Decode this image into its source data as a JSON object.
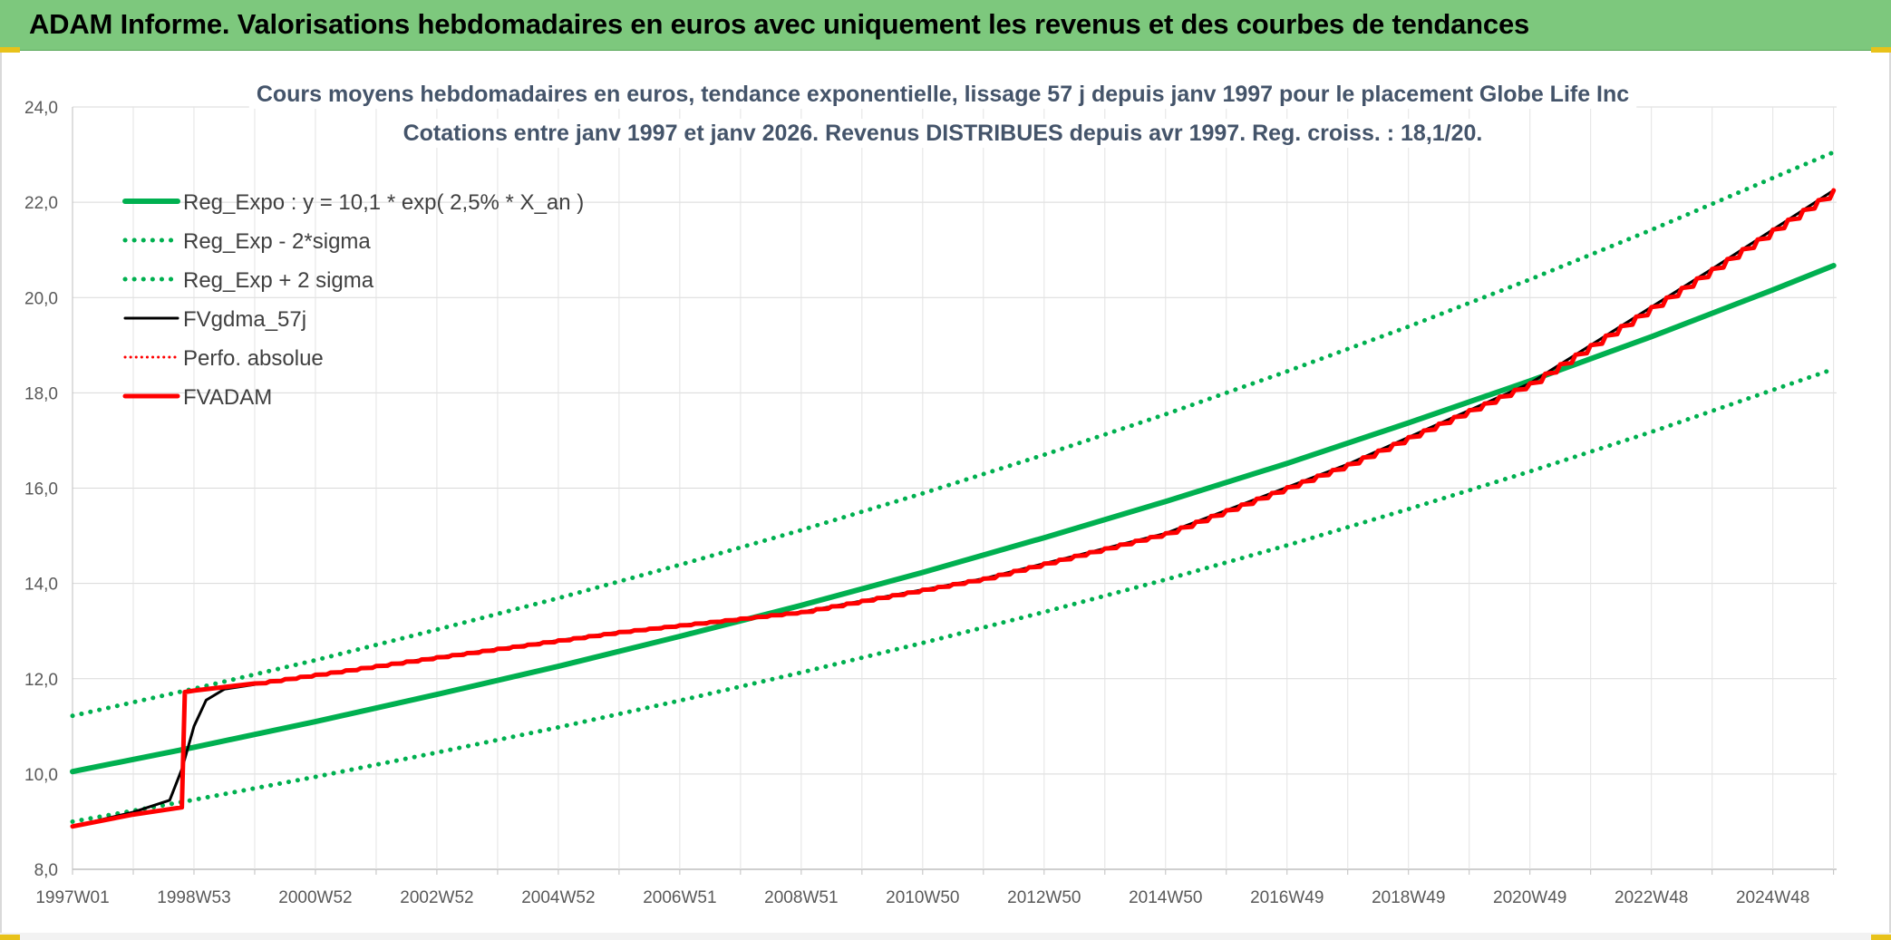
{
  "banner": {
    "title": "ADAM Informe. Valorisations hebdomadaires en euros avec uniquement les revenus et des courbes de tendances",
    "color": "#7dc87d"
  },
  "chart_data": {
    "type": "line",
    "title": "Cours moyens hebdomadaires en euros, tendance exponentielle, lissage 57 j depuis janv 1997 pour le placement Globe Life Inc",
    "subtitle": "Cotations entre janv 1997 et janv 2026. Revenus DISTRIBUES depuis avr 1997. Reg. croiss. : 18,1/20.",
    "xlabel": "",
    "ylabel": "",
    "xlim": [
      1997.0,
      2026.05
    ],
    "ylim": [
      8.0,
      24.0
    ],
    "grid": true,
    "legend_position": "top-left",
    "x_ticks": [
      {
        "label": "1997W01",
        "x": 1997.0
      },
      {
        "label": "1998W53",
        "x": 1999.0
      },
      {
        "label": "2000W52",
        "x": 2001.0
      },
      {
        "label": "2002W52",
        "x": 2003.0
      },
      {
        "label": "2004W52",
        "x": 2005.0
      },
      {
        "label": "2006W51",
        "x": 2007.0
      },
      {
        "label": "2008W51",
        "x": 2009.0
      },
      {
        "label": "2010W50",
        "x": 2011.0
      },
      {
        "label": "2012W50",
        "x": 2013.0
      },
      {
        "label": "2014W50",
        "x": 2015.0
      },
      {
        "label": "2016W49",
        "x": 2017.0
      },
      {
        "label": "2018W49",
        "x": 2019.0
      },
      {
        "label": "2020W49",
        "x": 2021.0
      },
      {
        "label": "2022W48",
        "x": 2023.0
      },
      {
        "label": "2024W48",
        "x": 2025.0
      }
    ],
    "y_ticks": [
      {
        "label": "8,0",
        "y": 8
      },
      {
        "label": "10,0",
        "y": 10
      },
      {
        "label": "12,0",
        "y": 12
      },
      {
        "label": "14,0",
        "y": 14
      },
      {
        "label": "16,0",
        "y": 16
      },
      {
        "label": "18,0",
        "y": 18
      },
      {
        "label": "20,0",
        "y": 20
      },
      {
        "label": "22,0",
        "y": 22
      },
      {
        "label": "24,0",
        "y": 24
      }
    ],
    "series": [
      {
        "name": "Reg_Expo : y = 10,1 * exp( 2,5% *  X_an )",
        "color": "#00b050",
        "style": "solid",
        "width": 6,
        "x": [
          1997,
          1999,
          2001,
          2003,
          2005,
          2007,
          2009,
          2011,
          2013,
          2015,
          2017,
          2019,
          2021,
          2023,
          2025,
          2026
        ],
        "y": [
          10.05,
          10.56,
          11.1,
          11.67,
          12.26,
          12.89,
          13.54,
          14.23,
          14.96,
          15.72,
          16.52,
          17.37,
          18.25,
          19.18,
          20.16,
          20.67
        ]
      },
      {
        "name": "Reg_Exp - 2*sigma",
        "color": "#00b050",
        "style": "dotted",
        "width": 5,
        "x": [
          1997,
          1999,
          2001,
          2003,
          2005,
          2007,
          2009,
          2011,
          2013,
          2015,
          2017,
          2019,
          2021,
          2023,
          2025,
          2026
        ],
        "y": [
          9.0,
          9.46,
          9.94,
          10.45,
          10.98,
          11.54,
          12.13,
          12.75,
          13.4,
          14.08,
          14.8,
          15.56,
          16.35,
          17.18,
          18.06,
          18.5
        ]
      },
      {
        "name": "Reg_Exp + 2 sigma",
        "color": "#00b050",
        "style": "dotted",
        "width": 5,
        "x": [
          1997,
          1999,
          2001,
          2003,
          2005,
          2007,
          2009,
          2011,
          2013,
          2015,
          2017,
          2019,
          2021,
          2023,
          2025,
          2026
        ],
        "y": [
          11.22,
          11.79,
          12.39,
          13.03,
          13.69,
          14.39,
          15.12,
          15.89,
          16.7,
          17.55,
          18.45,
          19.39,
          20.38,
          21.42,
          22.51,
          23.05
        ]
      },
      {
        "name": "FVgdma_57j",
        "color": "#000000",
        "style": "solid",
        "width": 3,
        "x": [
          1997,
          1998,
          1998.6,
          1998.8,
          1999.0,
          1999.2,
          1999.5,
          2000,
          2003,
          2006,
          2009,
          2012,
          2015,
          2018,
          2021,
          2024,
          2026
        ],
        "y": [
          8.9,
          9.2,
          9.45,
          10.1,
          11.0,
          11.55,
          11.78,
          11.88,
          12.45,
          12.98,
          13.4,
          14.1,
          15.05,
          16.5,
          18.2,
          20.6,
          22.25
        ]
      },
      {
        "name": "Perfo. absolue",
        "color": "#ff0000",
        "style": "dotted",
        "width": 3,
        "x": [
          1997,
          1998,
          1998.8,
          1998.85,
          1999.0,
          2000,
          2003,
          2006,
          2009,
          2012,
          2015,
          2018,
          2021,
          2024,
          2026
        ],
        "y": [
          8.9,
          9.15,
          9.3,
          11.72,
          11.75,
          11.9,
          12.45,
          12.98,
          13.4,
          14.1,
          15.05,
          16.5,
          18.2,
          20.6,
          22.25
        ]
      },
      {
        "name": "FVADAM",
        "color": "#ff0000",
        "style": "solid",
        "width": 5,
        "x": [
          1997,
          1998,
          1998.8,
          1998.85,
          1999.0,
          2000,
          2003,
          2006,
          2009,
          2012,
          2015,
          2018,
          2021,
          2024,
          2026
        ],
        "y": [
          8.9,
          9.15,
          9.3,
          11.72,
          11.75,
          11.9,
          12.45,
          12.98,
          13.4,
          14.1,
          15.05,
          16.5,
          18.2,
          20.6,
          22.25
        ]
      }
    ]
  }
}
